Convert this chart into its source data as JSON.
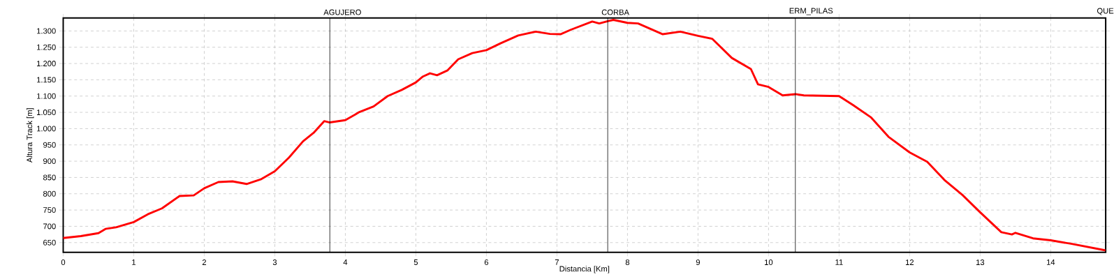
{
  "chart_data": {
    "type": "line",
    "xlabel": "Distancia [Km]",
    "ylabel": "Altura Track [m]",
    "x": [
      0,
      0.25,
      0.5,
      0.6,
      0.75,
      1.0,
      1.2,
      1.4,
      1.65,
      1.85,
      2.0,
      2.2,
      2.4,
      2.6,
      2.8,
      3.0,
      3.2,
      3.4,
      3.55,
      3.7,
      3.78,
      4.0,
      4.2,
      4.4,
      4.6,
      4.8,
      5.0,
      5.1,
      5.2,
      5.3,
      5.45,
      5.6,
      5.8,
      6.0,
      6.2,
      6.45,
      6.7,
      6.9,
      7.05,
      7.2,
      7.5,
      7.6,
      7.72,
      7.8,
      8.0,
      8.15,
      8.5,
      8.75,
      9.0,
      9.2,
      9.48,
      9.75,
      9.85,
      10.0,
      10.2,
      10.38,
      10.5,
      11.0,
      11.2,
      11.45,
      11.7,
      12.0,
      12.25,
      12.5,
      12.75,
      13.0,
      13.3,
      13.45,
      13.5,
      13.75,
      14.0,
      14.3,
      14.78
    ],
    "series": [
      {
        "color": "#ff0000",
        "values": [
          664,
          670,
          679,
          692,
          697,
          713,
          737,
          755,
          793,
          795,
          817,
          836,
          838,
          830,
          844,
          869,
          911,
          961,
          987,
          1023,
          1019,
          1026,
          1051,
          1068,
          1100,
          1119,
          1142,
          1160,
          1170,
          1164,
          1179,
          1213,
          1232,
          1241,
          1262,
          1286,
          1298,
          1291,
          1290,
          1304,
          1329,
          1323,
          1330,
          1334,
          1325,
          1323,
          1290,
          1298,
          1285,
          1276,
          1217,
          1183,
          1136,
          1128,
          1102,
          1106,
          1102,
          1100,
          1072,
          1035,
          975,
          927,
          898,
          841,
          796,
          743,
          682,
          675,
          680,
          663,
          657,
          646,
          626
        ]
      }
    ],
    "xlim": [
      0,
      14.78
    ],
    "ylim": [
      620,
      1340
    ],
    "xticks": [
      0,
      1,
      2,
      3,
      4,
      5,
      6,
      7,
      8,
      9,
      10,
      11,
      12,
      13,
      14
    ],
    "yticks": [
      650,
      700,
      750,
      800,
      850,
      900,
      950,
      {
        "value": 1000,
        "label": "1.000"
      },
      {
        "value": 1050,
        "label": "1.050"
      },
      {
        "value": 1100,
        "label": "1.100"
      },
      {
        "value": 1150,
        "label": "1.150"
      },
      {
        "value": 1200,
        "label": "1.200"
      },
      {
        "value": 1250,
        "label": "1.250"
      },
      {
        "value": 1300,
        "label": "1.300"
      }
    ],
    "ref_lines": [
      {
        "axis": "x",
        "value": 3.78,
        "label": "AGUJERO",
        "color": "#000000"
      },
      {
        "axis": "x",
        "value": 7.72,
        "label": "CORBA",
        "color": "#000000"
      },
      {
        "axis": "x",
        "value": 10.38,
        "label": "ERM_PILAS",
        "color": "#000000"
      },
      {
        "axis": "x",
        "value": 14.78,
        "label": "QUE",
        "color": "#000000"
      }
    ],
    "grid": true,
    "marker": "none",
    "line_style": "solid"
  }
}
